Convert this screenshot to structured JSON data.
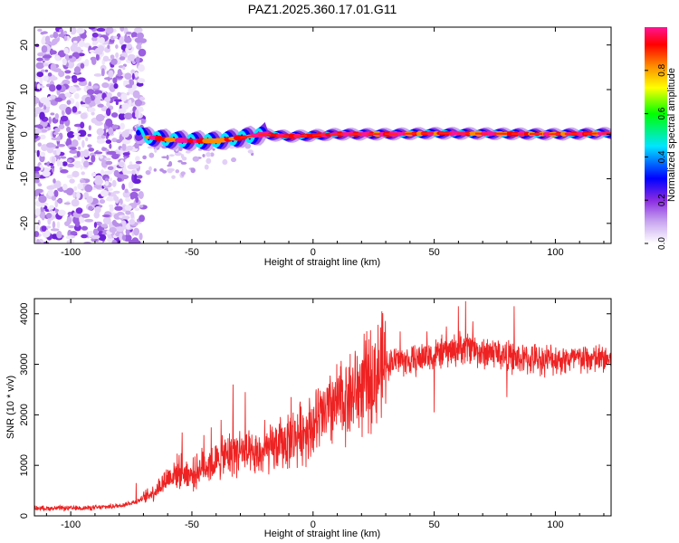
{
  "figure_title": "PAZ1.2025.360.17.01.G11",
  "chart_data": [
    {
      "type": "heatmap",
      "title": "PAZ1.2025.360.17.01.G11",
      "xlabel": "Height of straight line (km)",
      "ylabel": "Frequency (Hz)",
      "xlim": [
        -115,
        123
      ],
      "ylim": [
        -24.5,
        24
      ],
      "xticks": [
        -100,
        -50,
        0,
        50,
        100
      ],
      "yticks": [
        -20,
        -10,
        0,
        10,
        20
      ],
      "xtick_labels": [
        "-100",
        "-50",
        "0",
        "50",
        "100"
      ],
      "ytick_labels": [
        "-20",
        "-10",
        "0",
        "10",
        "20"
      ],
      "ridge": [
        {
          "x": -75,
          "y": 1.5
        },
        {
          "x": -70,
          "y": -0.5
        },
        {
          "x": -60,
          "y": -1.2
        },
        {
          "x": -50,
          "y": -1.5
        },
        {
          "x": -40,
          "y": -1.5
        },
        {
          "x": -30,
          "y": -0.8
        },
        {
          "x": -20,
          "y": 0
        },
        {
          "x": -10,
          "y": -0.5
        },
        {
          "x": 0,
          "y": -0.3
        },
        {
          "x": 10,
          "y": 0
        },
        {
          "x": 30,
          "y": 0
        },
        {
          "x": 50,
          "y": 0.2
        },
        {
          "x": 75,
          "y": 0.1
        },
        {
          "x": 100,
          "y": 0
        },
        {
          "x": 123,
          "y": 0.2
        }
      ],
      "noise_region_x": [
        -115,
        -70
      ],
      "colorbar": {
        "label": "Normalized spectral amplitude",
        "range": [
          0,
          1
        ],
        "ticks": [
          0.0,
          0.2,
          0.4,
          0.6,
          0.8
        ],
        "tick_labels": [
          "0.0",
          "0.2",
          "0.4",
          "0.6",
          "0.8"
        ],
        "colors": [
          "#ffffff",
          "#8a2be2",
          "#0000ff",
          "#00e5ff",
          "#00ff00",
          "#ffff00",
          "#ff8c00",
          "#ff0000",
          "#ff1493"
        ]
      }
    },
    {
      "type": "line",
      "xlabel": "Height of straight line (km)",
      "ylabel": "SNR (10 * v/v)",
      "xlim": [
        -115,
        123
      ],
      "ylim": [
        0,
        4300
      ],
      "xticks": [
        -100,
        -50,
        0,
        50,
        100
      ],
      "yticks": [
        0,
        1000,
        2000,
        3000,
        4000
      ],
      "xtick_labels": [
        "-100",
        "-50",
        "0",
        "50",
        "100"
      ],
      "ytick_labels": [
        "0",
        "1000",
        "2000",
        "3000",
        "4000"
      ],
      "line_color": "#ee2222",
      "series": [
        {
          "name": "SNR",
          "x": [
            -115,
            -100,
            -90,
            -80,
            -73,
            -70,
            -65,
            -60,
            -55,
            -50,
            -45,
            -40,
            -35,
            -30,
            -25,
            -20,
            -10,
            0,
            10,
            20,
            25,
            30,
            35,
            40,
            50,
            55,
            60,
            65,
            70,
            75,
            80,
            85,
            90,
            100,
            110,
            123
          ],
          "y": [
            150,
            150,
            160,
            200,
            280,
            350,
            500,
            750,
            900,
            800,
            1000,
            1050,
            1200,
            1300,
            1150,
            1250,
            1500,
            1800,
            2200,
            2550,
            2750,
            3000,
            3100,
            3050,
            3200,
            3250,
            3300,
            3350,
            3200,
            3250,
            3150,
            3100,
            3100,
            3100,
            3100,
            3100
          ]
        },
        {
          "name": "spikes",
          "x": [
            -73,
            -54,
            -45,
            -42,
            -38,
            -33,
            -28,
            -20,
            -9,
            2,
            8,
            12,
            20,
            36,
            45,
            47,
            50,
            55,
            58,
            60,
            63,
            66,
            72,
            80,
            83
          ],
          "y": [
            650,
            1650,
            1600,
            1750,
            1900,
            2600,
            2450,
            1900,
            2350,
            2400,
            2650,
            2700,
            2950,
            3650,
            3400,
            3650,
            2050,
            3750,
            3400,
            4150,
            4250,
            3850,
            3500,
            2350,
            4150
          ]
        }
      ]
    }
  ]
}
